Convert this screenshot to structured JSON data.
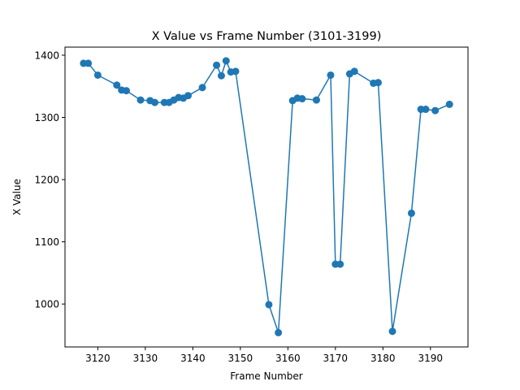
{
  "chart_data": {
    "type": "line",
    "title": "X Value vs Frame Number (3101-3199)",
    "xlabel": "Frame Number",
    "ylabel": "X Value",
    "xlim": [
      3113.1,
      3197.9
    ],
    "ylim": [
      931,
      1413
    ],
    "xticks": [
      3120,
      3130,
      3140,
      3150,
      3160,
      3170,
      3180,
      3190
    ],
    "yticks": [
      1000,
      1100,
      1200,
      1300,
      1400
    ],
    "grid": false,
    "legend": "none",
    "color": "#1f77b4",
    "marker": "circle",
    "x": [
      3117,
      3118,
      3120,
      3124,
      3125,
      3126,
      3129,
      3131,
      3132,
      3134,
      3135,
      3136,
      3137,
      3138,
      3139,
      3142,
      3145,
      3146,
      3147,
      3148,
      3149,
      3156,
      3158,
      3161,
      3162,
      3163,
      3166,
      3169,
      3170,
      3171,
      3173,
      3174,
      3178,
      3179,
      3182,
      3186,
      3188,
      3189,
      3191,
      3194
    ],
    "y": [
      1387,
      1387,
      1368,
      1352,
      1344,
      1343,
      1328,
      1327,
      1324,
      1324,
      1324,
      1328,
      1332,
      1331,
      1335,
      1348,
      1384,
      1367,
      1391,
      1373,
      1374,
      999,
      954,
      1327,
      1331,
      1330,
      1328,
      1368,
      1064,
      1064,
      1370,
      1374,
      1355,
      1356,
      956,
      1146,
      1313,
      1313,
      1311,
      1321
    ]
  }
}
